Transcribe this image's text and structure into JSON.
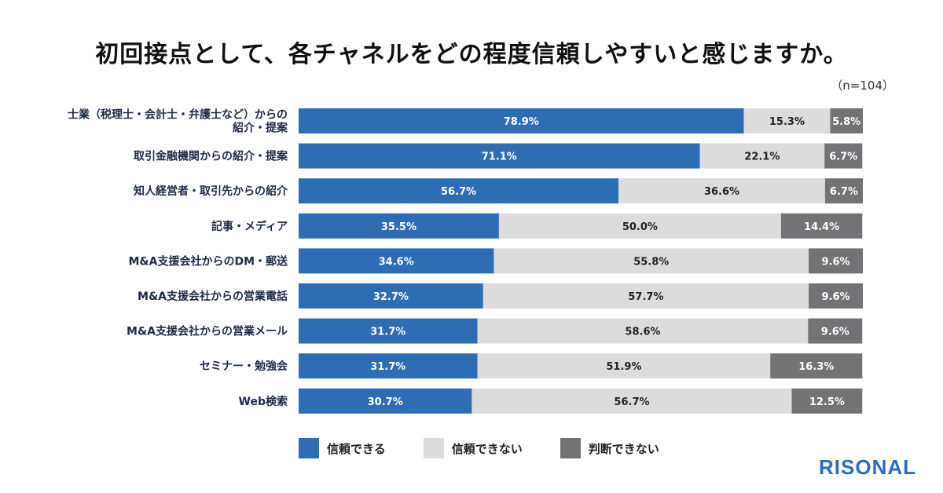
{
  "page": {
    "title": "初回接点として、各チャネルをどの程度信頼しやすいと感じますか。",
    "n_note": "（n=104）",
    "logo": "RISONAL",
    "logo_color": "#2a6cc4"
  },
  "chart_data": {
    "type": "bar",
    "orientation": "horizontal",
    "stacked": true,
    "value_format": "percent",
    "categories": [
      "士業（税理士・会計士・弁護士など）からの\n紹介・提案",
      "取引金融機関からの紹介・提案",
      "知人経営者・取引先からの紹介",
      "記事・メディア",
      "M&A支援会社からのDM・郵送",
      "M&A支援会社からの営業電話",
      "M&A支援会社からの営業メール",
      "セミナー・勉強会",
      "Web検索"
    ],
    "series": [
      {
        "name": "信頼できる",
        "color": "#2e6db4",
        "text_color": "#ffffff",
        "values": [
          78.9,
          71.1,
          56.7,
          35.5,
          34.6,
          32.7,
          31.7,
          31.7,
          30.7
        ]
      },
      {
        "name": "信頼できない",
        "color": "#dcdcdd",
        "text_color": "#222222",
        "values": [
          15.3,
          22.1,
          36.6,
          50.0,
          55.8,
          57.7,
          58.6,
          51.9,
          56.7
        ]
      },
      {
        "name": "判断できない",
        "color": "#737376",
        "text_color": "#ffffff",
        "values": [
          5.8,
          6.7,
          6.7,
          14.4,
          9.6,
          9.6,
          9.6,
          16.3,
          12.5
        ]
      }
    ],
    "xlim": [
      0,
      100
    ],
    "legend_position": "bottom",
    "grid": false
  }
}
